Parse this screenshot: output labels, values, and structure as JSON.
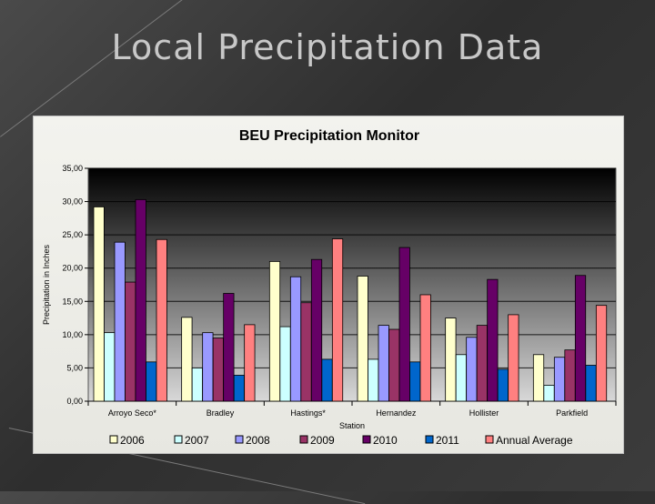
{
  "slide": {
    "title": "Local Precipitation Data"
  },
  "chart_data": {
    "type": "bar",
    "title": "BEU Precipitation Monitor",
    "xlabel": "Station",
    "ylabel": "Precipitation in Inches",
    "ylim": [
      0,
      35
    ],
    "yticks": [
      "0,00",
      "5,00",
      "10,00",
      "15,00",
      "20,00",
      "25,00",
      "30,00",
      "35,00"
    ],
    "grid": true,
    "legend_position": "bottom",
    "categories": [
      "Arroyo Seco*",
      "Bradley",
      "Hastings*",
      "Hernandez",
      "Hollister",
      "Parkfield"
    ],
    "series": [
      {
        "name": "2006",
        "color": "#ffffcc",
        "values": [
          29.2,
          12.6,
          21.0,
          18.8,
          12.5,
          7.0
        ]
      },
      {
        "name": "2007",
        "color": "#ccffff",
        "values": [
          10.3,
          5.0,
          11.2,
          6.3,
          7.0,
          2.4
        ]
      },
      {
        "name": "2008",
        "color": "#9999ff",
        "values": [
          23.9,
          10.3,
          18.7,
          11.4,
          9.6,
          6.6
        ]
      },
      {
        "name": "2009",
        "color": "#993366",
        "values": [
          17.9,
          9.5,
          14.8,
          10.8,
          11.4,
          7.7
        ]
      },
      {
        "name": "2010",
        "color": "#660066",
        "values": [
          30.3,
          16.2,
          21.3,
          23.1,
          18.3,
          18.9
        ]
      },
      {
        "name": "2011",
        "color": "#0066cc",
        "values": [
          5.9,
          3.9,
          6.3,
          5.9,
          4.8,
          5.4
        ]
      },
      {
        "name": "Annual Average",
        "color": "#ff8080",
        "values": [
          24.3,
          11.5,
          24.4,
          16.0,
          13.0,
          14.4
        ]
      }
    ]
  }
}
